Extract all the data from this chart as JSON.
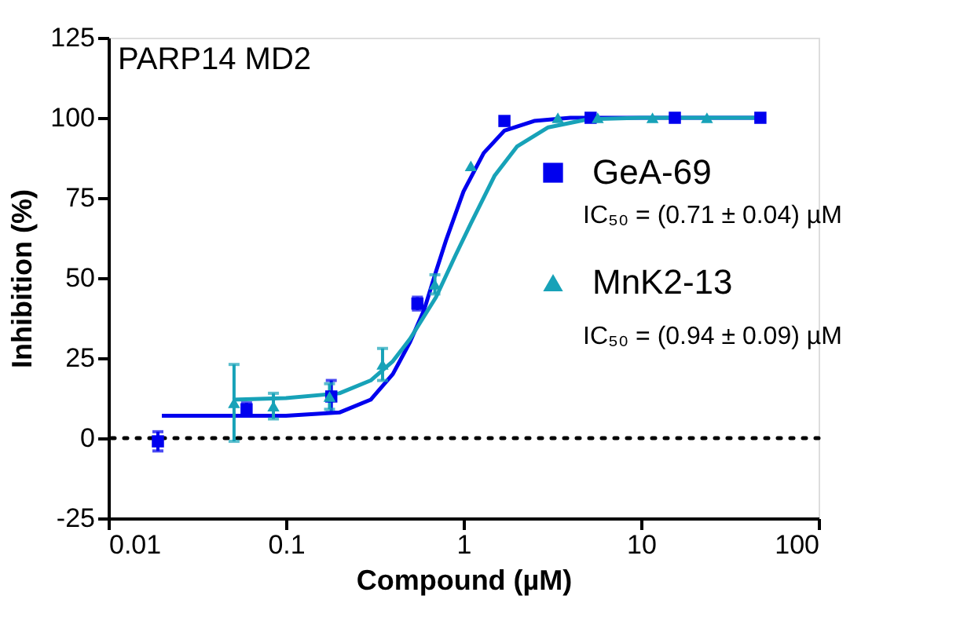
{
  "chart_data": {
    "type": "scatter",
    "title": "PARP14 MD2",
    "xlabel": "Compound (µM)",
    "ylabel": "Inhibition (%)",
    "log": "x",
    "xlim": [
      0.01,
      100
    ],
    "xticks": [
      0.01,
      0.1,
      1,
      10,
      100
    ],
    "ylim": [
      -25,
      125
    ],
    "yticks": [
      -25,
      0,
      25,
      50,
      75,
      100,
      125
    ],
    "grid": false,
    "legend": "right",
    "annotations": [
      "IC₅₀ = (0.71 ± 0.04) µM",
      "IC₅₀ = (0.94 ± 0.09) µM"
    ],
    "ref_lines": [
      {
        "axis": "y",
        "value": 0,
        "line_style": "dotted",
        "color": "#000000"
      }
    ],
    "series": [
      {
        "name": "GeA-69",
        "marker": "square",
        "color": "#0000ee",
        "x": [
          0.019,
          0.06,
          0.18,
          0.55,
          1.7,
          5.2,
          15.5,
          47
        ],
        "values": [
          -1,
          9,
          13,
          42,
          99,
          100,
          100,
          100
        ],
        "errors": [
          3,
          2,
          5,
          2,
          null,
          null,
          null,
          null
        ]
      },
      {
        "type": "line",
        "color": "#0000ee",
        "x": [
          0.02,
          0.1,
          0.2,
          0.3,
          0.4,
          0.5,
          0.6,
          0.7,
          0.8,
          1.0,
          1.3,
          1.7,
          2.5,
          4,
          50
        ],
        "values": [
          7,
          7,
          8,
          12,
          20,
          30,
          40,
          52,
          62,
          77,
          89,
          96,
          99,
          100,
          100
        ]
      },
      {
        "name": "MnK2-13",
        "marker": "triangle",
        "color": "#17a2b8",
        "x": [
          0.051,
          0.085,
          0.176,
          0.35,
          0.69,
          1.1,
          3.4,
          5.7,
          11.6,
          23.5
        ],
        "values": [
          11,
          10,
          13,
          23,
          48,
          85,
          100,
          100,
          100,
          100
        ],
        "errors": [
          12,
          4,
          4,
          5,
          3,
          null,
          null,
          null,
          null,
          null
        ]
      },
      {
        "type": "line",
        "color": "#17a2b8",
        "x": [
          0.05,
          0.1,
          0.2,
          0.3,
          0.4,
          0.5,
          0.7,
          0.9,
          1.1,
          1.5,
          2,
          3,
          5,
          10,
          50
        ],
        "values": [
          12,
          12.5,
          14,
          18,
          24,
          31,
          44,
          57,
          67,
          82,
          91,
          97,
          99.5,
          100,
          100
        ]
      }
    ]
  }
}
